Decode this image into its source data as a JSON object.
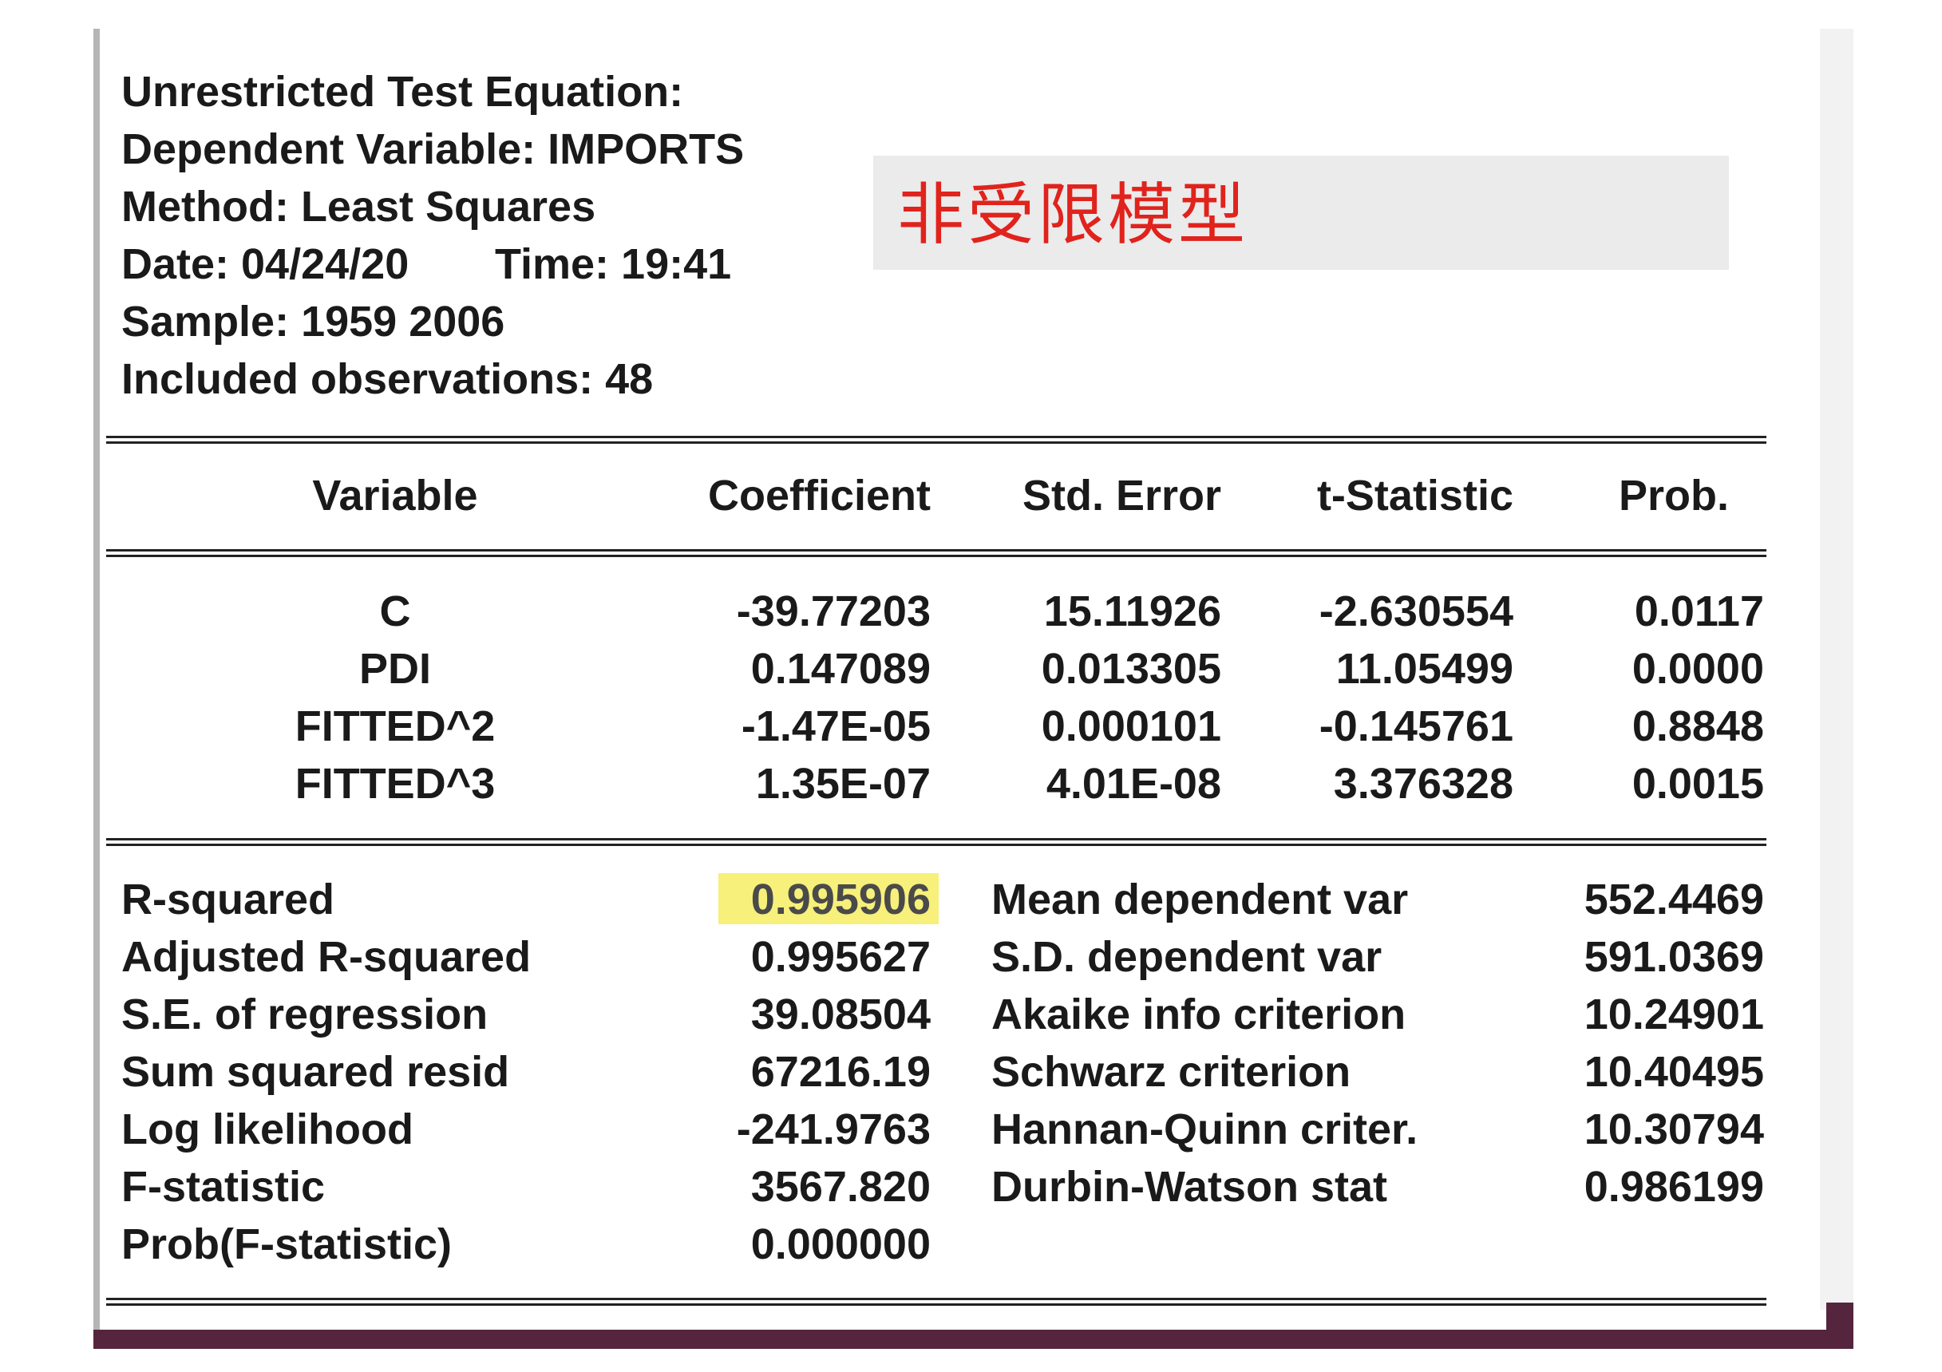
{
  "header": {
    "title": "Unrestricted Test Equation:",
    "dependent": "Dependent Variable: IMPORTS",
    "method": "Method: Least Squares",
    "date": "Date: 04/24/20",
    "time": "Time: 19:41",
    "sample": "Sample: 1959 2006",
    "observations": "Included observations: 48"
  },
  "annotation": {
    "label": "非受限模型",
    "color": "#e0231c"
  },
  "table": {
    "columns": [
      "Variable",
      "Coefficient",
      "Std. Error",
      "t-Statistic",
      "Prob."
    ],
    "rows": [
      [
        "C",
        "-39.77203",
        "15.11926",
        "-2.630554",
        "0.0117"
      ],
      [
        "PDI",
        "0.147089",
        "0.013305",
        "11.05499",
        "0.0000"
      ],
      [
        "FITTED^2",
        "-1.47E-05",
        "0.000101",
        "-0.145761",
        "0.8848"
      ],
      [
        "FITTED^3",
        "1.35E-07",
        "4.01E-08",
        "3.376328",
        "0.0015"
      ]
    ]
  },
  "stats_left": [
    [
      "R-squared",
      "0.995906"
    ],
    [
      "Adjusted R-squared",
      "0.995627"
    ],
    [
      "S.E. of regression",
      "39.08504"
    ],
    [
      "Sum squared resid",
      "67216.19"
    ],
    [
      "Log likelihood",
      "-241.9763"
    ],
    [
      "F-statistic",
      "3567.820"
    ],
    [
      "Prob(F-statistic)",
      "0.000000"
    ]
  ],
  "stats_right": [
    [
      "Mean dependent var",
      "552.4469"
    ],
    [
      "S.D. dependent var",
      "591.0369"
    ],
    [
      "Akaike info criterion",
      "10.24901"
    ],
    [
      "Schwarz criterion",
      "10.40495"
    ],
    [
      "Hannan-Quinn criter.",
      "10.30794"
    ],
    [
      "Durbin-Watson stat",
      "0.986199"
    ]
  ],
  "colors": {
    "highlight": "#f7f07a",
    "accent_bar": "#55253d"
  }
}
